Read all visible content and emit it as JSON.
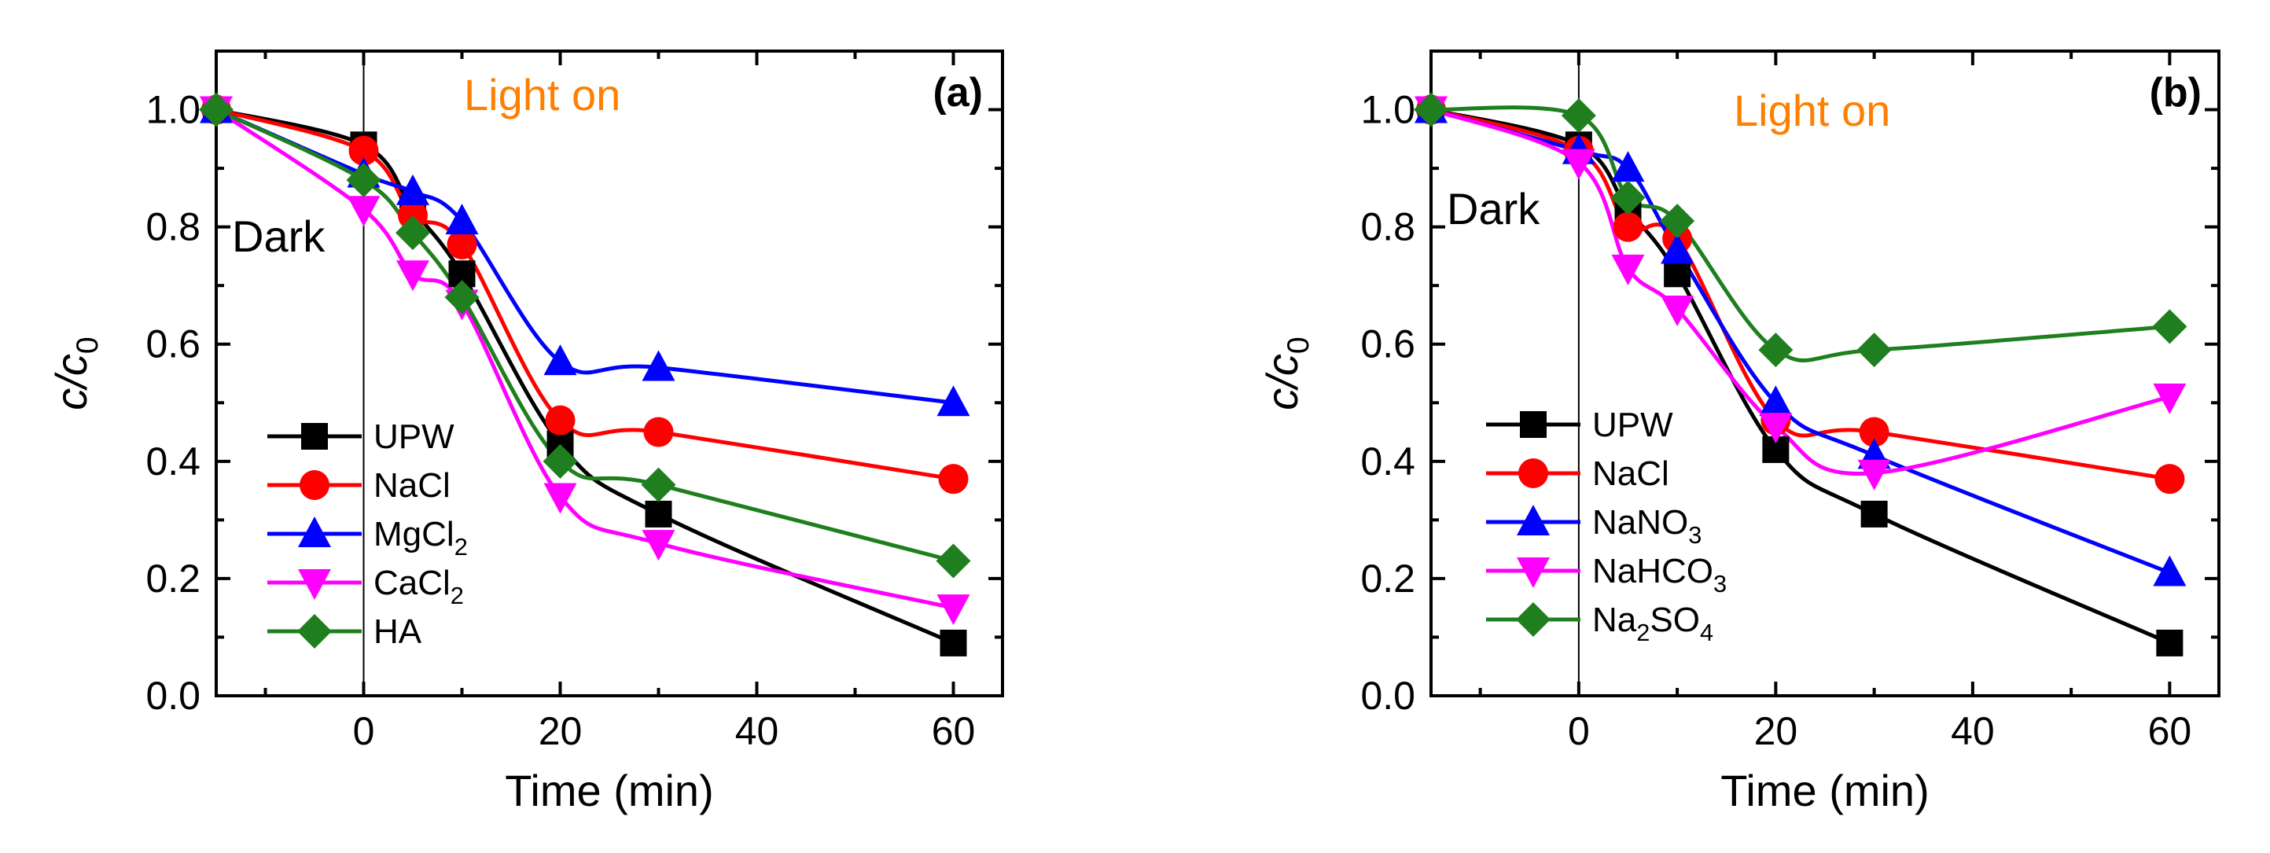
{
  "chart_data": [
    {
      "type": "line",
      "panel_label": "(a)",
      "xlabel": "Time (min)",
      "ylabel_main": "c/c",
      "ylabel_sub": "0",
      "xlim": [
        -15,
        65
      ],
      "ylim": [
        0.0,
        1.1
      ],
      "xticks": [
        0,
        20,
        40,
        60
      ],
      "xtick_labels": [
        "0",
        "20",
        "40",
        "60"
      ],
      "yticks": [
        0.0,
        0.2,
        0.4,
        0.6,
        0.8,
        1.0
      ],
      "ytick_labels": [
        "0.0",
        "0.2",
        "0.4",
        "0.6",
        "0.8",
        "1.0"
      ],
      "dark_label": "Dark",
      "light_label": "Light on",
      "divider_x": 0,
      "legend_position": "bottom-left",
      "x": [
        -15,
        0,
        5,
        10,
        20,
        30,
        60
      ],
      "series": [
        {
          "name": "UPW",
          "label_main": "UPW",
          "label_sub": "",
          "label_after": "",
          "color": "#000000",
          "marker": "square",
          "values": [
            1.0,
            0.94,
            0.83,
            0.72,
            0.43,
            0.31,
            0.09
          ]
        },
        {
          "name": "NaCl",
          "label_main": "NaCl",
          "label_sub": "",
          "label_after": "",
          "color": "#ff0000",
          "marker": "circle",
          "values": [
            1.0,
            0.93,
            0.82,
            0.77,
            0.47,
            0.45,
            0.37
          ]
        },
        {
          "name": "MgCl2",
          "label_main": "MgCl",
          "label_sub": "2",
          "label_after": "",
          "color": "#0000ff",
          "marker": "triangle-up",
          "values": [
            1.0,
            0.89,
            0.86,
            0.81,
            0.57,
            0.56,
            0.5
          ]
        },
        {
          "name": "CaCl2",
          "label_main": "CaCl",
          "label_sub": "2",
          "label_after": "",
          "color": "#ff00ff",
          "marker": "triangle-down",
          "values": [
            1.0,
            0.83,
            0.72,
            0.67,
            0.34,
            0.26,
            0.15
          ]
        },
        {
          "name": "HA",
          "label_main": "HA",
          "label_sub": "",
          "label_after": "",
          "color": "#1f7f1f",
          "marker": "diamond",
          "values": [
            1.0,
            0.88,
            0.79,
            0.68,
            0.4,
            0.36,
            0.23
          ]
        }
      ]
    },
    {
      "type": "line",
      "panel_label": "(b)",
      "xlabel": "Time (min)",
      "ylabel_main": "c/c",
      "ylabel_sub": "0",
      "xlim": [
        -15,
        65
      ],
      "ylim": [
        0.0,
        1.1
      ],
      "xticks": [
        0,
        20,
        40,
        60
      ],
      "xtick_labels": [
        "0",
        "20",
        "40",
        "60"
      ],
      "yticks": [
        0.0,
        0.2,
        0.4,
        0.6,
        0.8,
        1.0
      ],
      "ytick_labels": [
        "0.0",
        "0.2",
        "0.4",
        "0.6",
        "0.8",
        "1.0"
      ],
      "dark_label": "Dark",
      "light_label": "Light on",
      "divider_x": 0,
      "legend_position": "bottom-left",
      "x": [
        -15,
        0,
        5,
        10,
        20,
        30,
        60
      ],
      "series": [
        {
          "name": "UPW",
          "label_main": "UPW",
          "label_sub": "",
          "label_after": "",
          "color": "#000000",
          "marker": "square",
          "values": [
            1.0,
            0.94,
            0.83,
            0.72,
            0.42,
            0.31,
            0.09
          ]
        },
        {
          "name": "NaCl",
          "label_main": "NaCl",
          "label_sub": "",
          "label_after": "",
          "color": "#ff0000",
          "marker": "circle",
          "values": [
            1.0,
            0.93,
            0.8,
            0.78,
            0.47,
            0.45,
            0.37
          ]
        },
        {
          "name": "NaNO3",
          "label_main": "NaNO",
          "label_sub": "3",
          "label_after": "",
          "color": "#0000ff",
          "marker": "triangle-up",
          "values": [
            1.0,
            0.93,
            0.9,
            0.76,
            0.5,
            0.41,
            0.21
          ]
        },
        {
          "name": "NaHCO3",
          "label_main": "NaHCO",
          "label_sub": "3",
          "label_after": "",
          "color": "#ff00ff",
          "marker": "triangle-down",
          "values": [
            1.0,
            0.91,
            0.73,
            0.66,
            0.46,
            0.38,
            0.51
          ]
        },
        {
          "name": "Na2SO4",
          "label_main": "Na",
          "label_sub": "2",
          "label_after": "SO4",
          "color": "#1f7f1f",
          "marker": "diamond",
          "values": [
            1.0,
            0.99,
            0.85,
            0.81,
            0.59,
            0.59,
            0.63
          ]
        }
      ]
    }
  ]
}
